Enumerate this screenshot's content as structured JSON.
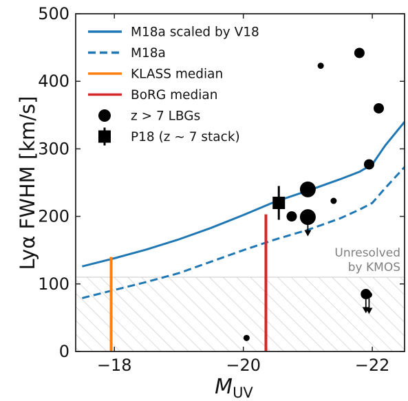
{
  "chart_data": {
    "type": "scatter",
    "xlabel": "M",
    "xlabel_sub": "UV",
    "ylabel": "Lyα FWHM [km/s]",
    "xlim": [
      -17.4,
      -22.5
    ],
    "ylim": [
      0,
      500
    ],
    "x_ticks": [
      -18,
      -20,
      -22
    ],
    "x_tick_labels": [
      "−18",
      "−20",
      "−22"
    ],
    "y_ticks": [
      0,
      100,
      200,
      300,
      400,
      500
    ],
    "y_tick_labels": [
      "0",
      "100",
      "200",
      "300",
      "400",
      "500"
    ],
    "unresolved_region": {
      "ymax": 110,
      "label_line1": "Unresolved",
      "label_line2": "by KMOS",
      "color": "#c8c8c8"
    },
    "legend_position": "top-left",
    "legend": [
      {
        "label": "M18a scaled by V18",
        "kind": "line",
        "color": "#1f77b4",
        "dash": "solid"
      },
      {
        "label": "M18a",
        "kind": "line",
        "color": "#1f77b4",
        "dash": "dashed"
      },
      {
        "label": "KLASS median",
        "kind": "line",
        "color": "#ff7f0e",
        "dash": "solid"
      },
      {
        "label": "BoRG median",
        "kind": "line",
        "color": "#d62728",
        "dash": "solid"
      },
      {
        "label": "z > 7 LBGs",
        "kind": "circle",
        "color": "#000000"
      },
      {
        "label": "P18 (z ∼ 7 stack)",
        "kind": "square",
        "color": "#000000"
      }
    ],
    "series": [
      {
        "name": "M18a scaled by V18",
        "color": "#1f77b4",
        "dash": "solid",
        "x": [
          -17.5,
          -18.0,
          -18.5,
          -19.0,
          -19.5,
          -20.0,
          -20.5,
          -21.0,
          -21.5,
          -21.8,
          -22.0,
          -22.2,
          -22.5
        ],
        "y": [
          126,
          138,
          151,
          166,
          183,
          202,
          222,
          238,
          255,
          266,
          277,
          305,
          340
        ]
      },
      {
        "name": "M18a",
        "color": "#1f77b4",
        "dash": "dashed",
        "x": [
          -17.5,
          -18.0,
          -18.5,
          -19.0,
          -19.5,
          -20.0,
          -20.5,
          -21.0,
          -21.5,
          -21.8,
          -22.0,
          -22.2,
          -22.5
        ],
        "y": [
          79,
          91,
          103,
          116,
          133,
          150,
          166,
          180,
          197,
          210,
          220,
          242,
          273
        ]
      }
    ],
    "vertical_segments": [
      {
        "name": "KLASS median",
        "color": "#ff7f0e",
        "x": -17.95,
        "y0": 0,
        "y1": 140
      },
      {
        "name": "BoRG median",
        "color": "#d62728",
        "x": -20.35,
        "y0": 0,
        "y1": 203
      }
    ],
    "lbg_points": [
      {
        "x": -21.8,
        "y": 442,
        "size": "medium",
        "upper_limit": false
      },
      {
        "x": -21.2,
        "y": 423,
        "size": "small",
        "upper_limit": false
      },
      {
        "x": -22.1,
        "y": 360,
        "size": "medium",
        "upper_limit": false
      },
      {
        "x": -21.95,
        "y": 277,
        "size": "medium",
        "upper_limit": false
      },
      {
        "x": -21.0,
        "y": 240,
        "size": "large",
        "upper_limit": false
      },
      {
        "x": -21.4,
        "y": 223,
        "size": "small",
        "upper_limit": false
      },
      {
        "x": -20.75,
        "y": 200,
        "size": "medium",
        "upper_limit": false
      },
      {
        "x": -21.0,
        "y": 199,
        "size": "large",
        "upper_limit": true
      },
      {
        "x": -21.9,
        "y": 85,
        "size": "medium",
        "upper_limit": true
      },
      {
        "x": -21.95,
        "y": 84,
        "size": "small",
        "upper_limit": true
      },
      {
        "x": -20.05,
        "y": 20,
        "size": "small",
        "upper_limit": false
      }
    ],
    "p18_stack": {
      "x": -20.55,
      "y": 220,
      "yerr": 25
    }
  }
}
